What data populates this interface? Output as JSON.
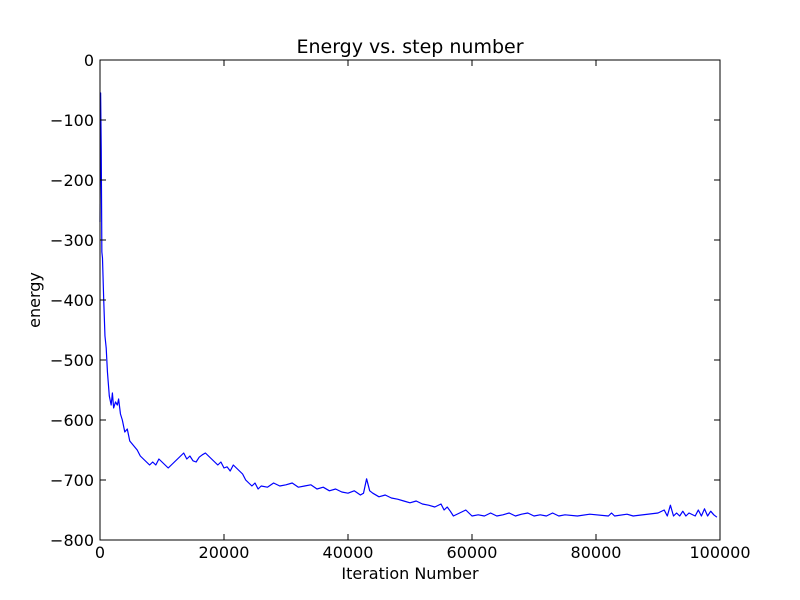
{
  "chart_data": {
    "type": "line",
    "title": "Energy vs. step number",
    "xlabel": "Iteration Number",
    "ylabel": "energy",
    "xlim": [
      0,
      100000
    ],
    "ylim": [
      -800,
      0
    ],
    "x_ticks": [
      0,
      20000,
      40000,
      60000,
      80000,
      100000
    ],
    "x_tick_labels": [
      "0",
      "20000",
      "40000",
      "60000",
      "80000",
      "100000"
    ],
    "y_ticks": [
      0,
      -100,
      -200,
      -300,
      -400,
      -500,
      -600,
      -700,
      -800
    ],
    "y_tick_labels": [
      "0",
      "−100",
      "−200",
      "−300",
      "−400",
      "−500",
      "−600",
      "−700",
      "−800"
    ],
    "grid": false,
    "line_color": "#0000ff",
    "series": [
      {
        "x": [
          0,
          100,
          200,
          300,
          400,
          600,
          800,
          1000,
          1200,
          1500,
          1800,
          2000,
          2200,
          2500,
          2800,
          3000,
          3300,
          3600,
          4000,
          4400,
          4800,
          5200,
          5600,
          6000,
          6500,
          7000,
          7500,
          8000,
          8500,
          9000,
          9500,
          10000,
          10500,
          11000,
          11500,
          12000,
          12500,
          13000,
          13500,
          14000,
          14500,
          15000,
          15500,
          16000,
          16500,
          17000,
          17500,
          18000,
          18500,
          19000,
          19500,
          20000,
          20500,
          21000,
          21500,
          22000,
          22500,
          23000,
          23500,
          24000,
          24500,
          25000,
          25500,
          26000,
          27000,
          28000,
          29000,
          30000,
          31000,
          32000,
          33000,
          34000,
          35000,
          36000,
          37000,
          38000,
          39000,
          40000,
          41000,
          42000,
          42500,
          43000,
          43500,
          44000,
          45000,
          46000,
          47000,
          48000,
          49000,
          50000,
          51000,
          52000,
          53000,
          54000,
          55000,
          55500,
          56000,
          56500,
          57000,
          58000,
          59000,
          60000,
          61000,
          62000,
          63000,
          64000,
          65000,
          66000,
          67000,
          68000,
          69000,
          70000,
          71000,
          72000,
          73000,
          74000,
          75000,
          77000,
          79000,
          82000,
          82500,
          83000,
          85000,
          86000,
          90000,
          91000,
          91500,
          92000,
          92500,
          93000,
          93500,
          94000,
          94500,
          95000,
          96000,
          96500,
          97000,
          97500,
          98000,
          98500,
          99000,
          99500
        ],
        "y": [
          -270,
          -55,
          -150,
          -320,
          -330,
          -400,
          -460,
          -480,
          -520,
          -560,
          -575,
          -555,
          -580,
          -570,
          -575,
          -565,
          -590,
          -600,
          -620,
          -615,
          -635,
          -640,
          -645,
          -650,
          -660,
          -665,
          -670,
          -675,
          -670,
          -675,
          -665,
          -670,
          -675,
          -680,
          -675,
          -670,
          -665,
          -660,
          -655,
          -665,
          -660,
          -668,
          -670,
          -662,
          -658,
          -655,
          -660,
          -665,
          -670,
          -675,
          -670,
          -680,
          -678,
          -685,
          -675,
          -680,
          -685,
          -690,
          -700,
          -705,
          -710,
          -705,
          -715,
          -710,
          -712,
          -705,
          -710,
          -708,
          -705,
          -712,
          -710,
          -708,
          -715,
          -712,
          -718,
          -715,
          -720,
          -722,
          -718,
          -725,
          -722,
          -698,
          -718,
          -722,
          -728,
          -725,
          -730,
          -732,
          -735,
          -738,
          -735,
          -740,
          -742,
          -745,
          -740,
          -750,
          -745,
          -752,
          -760,
          -755,
          -750,
          -760,
          -758,
          -760,
          -755,
          -760,
          -758,
          -755,
          -760,
          -757,
          -755,
          -760,
          -758,
          -760,
          -755,
          -760,
          -758,
          -760,
          -757,
          -760,
          -755,
          -760,
          -757,
          -760,
          -755,
          -750,
          -760,
          -742,
          -760,
          -755,
          -760,
          -752,
          -760,
          -755,
          -760,
          -750,
          -760,
          -748,
          -760,
          -752,
          -758,
          -762
        ]
      }
    ]
  }
}
